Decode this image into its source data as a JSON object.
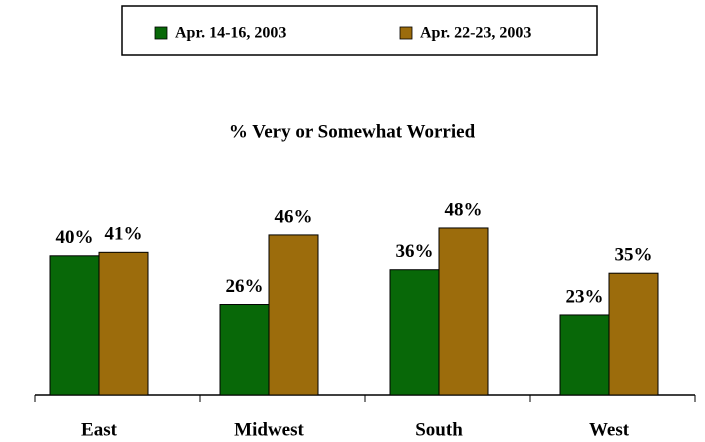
{
  "chart_data": {
    "type": "bar",
    "title": "% Very or Somewhat Worried",
    "categories": [
      "East",
      "Midwest",
      "South",
      "West"
    ],
    "series": [
      {
        "name": "Apr. 14-16, 2003",
        "color": "#086808",
        "values": [
          40,
          26,
          36,
          23
        ],
        "value_labels": [
          "40%",
          "26%",
          "36%",
          "23%"
        ]
      },
      {
        "name": "Apr. 22-23, 2003",
        "color": "#9c6c0c",
        "values": [
          41,
          46,
          48,
          35
        ],
        "value_labels": [
          "41%",
          "46%",
          "48%",
          "35%"
        ]
      }
    ],
    "legend": "top"
  }
}
